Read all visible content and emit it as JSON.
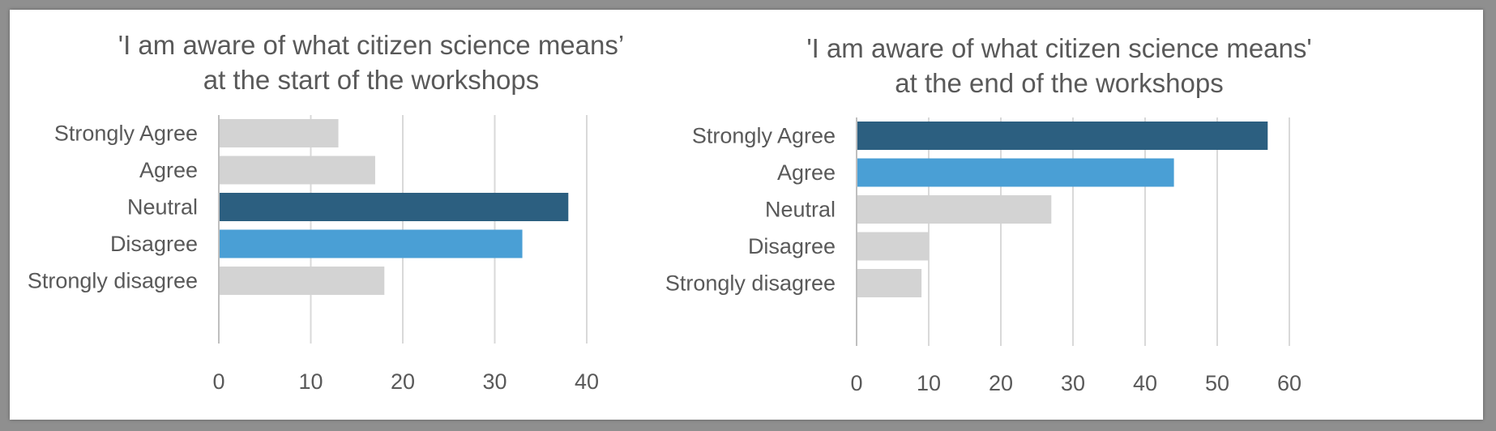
{
  "colors": {
    "dark": "#2c5f80",
    "blue": "#4a9fd5",
    "gray": "#d3d3d3",
    "grid": "#d9d9d9",
    "text": "#595959"
  },
  "chart_data": [
    {
      "type": "bar",
      "orientation": "horizontal",
      "title": "'I am aware of what citizen science means’\nat the start of the workshops",
      "categories": [
        "Strongly Agree",
        "Agree",
        "Neutral",
        "Disagree",
        "Strongly disagree"
      ],
      "values": [
        13,
        17,
        38,
        33,
        18
      ],
      "bar_colors": [
        "#d3d3d3",
        "#d3d3d3",
        "#2c5f80",
        "#4a9fd5",
        "#d3d3d3"
      ],
      "xlim": [
        0,
        40
      ],
      "xticks": [
        0,
        10,
        20,
        30,
        40
      ],
      "grid": true
    },
    {
      "type": "bar",
      "orientation": "horizontal",
      "title": "'I am aware of what citizen science means'\nat the end of the workshops",
      "categories": [
        "Strongly Agree",
        "Agree",
        "Neutral",
        "Disagree",
        "Strongly disagree"
      ],
      "values": [
        57,
        44,
        27,
        10,
        9
      ],
      "bar_colors": [
        "#2c5f80",
        "#4a9fd5",
        "#d3d3d3",
        "#d3d3d3",
        "#d3d3d3"
      ],
      "xlim": [
        0,
        60
      ],
      "xticks": [
        0,
        10,
        20,
        30,
        40,
        50,
        60
      ],
      "grid": true
    }
  ]
}
